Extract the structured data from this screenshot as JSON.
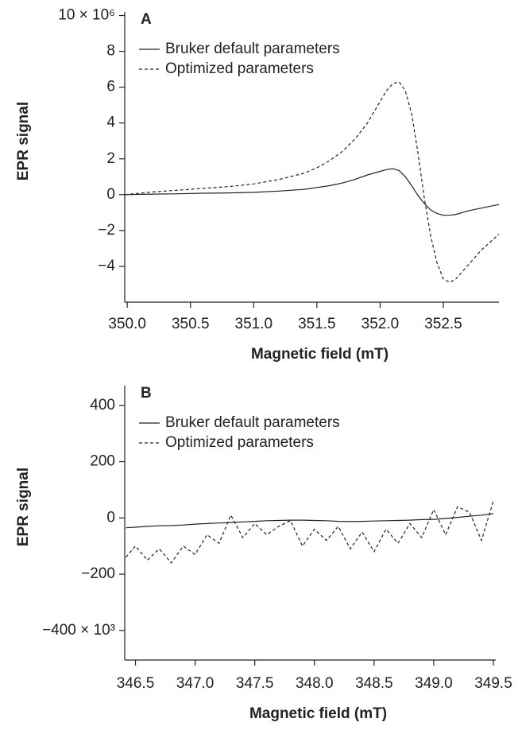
{
  "chart_data": [
    {
      "type": "line",
      "panel_label": "A",
      "xlabel": "Magnetic field (mT)",
      "ylabel": "EPR signal",
      "x": [
        349.98,
        350.2,
        350.4,
        350.6,
        350.8,
        351.0,
        351.2,
        351.4,
        351.5,
        351.6,
        351.7,
        351.8,
        351.9,
        352.0,
        352.05,
        352.1,
        352.15,
        352.2,
        352.25,
        352.3,
        352.35,
        352.4,
        352.45,
        352.5,
        352.55,
        352.6,
        352.7,
        352.8,
        352.94
      ],
      "series": [
        {
          "name": "Bruker default parameters",
          "color": "#222222",
          "linestyle": "solid",
          "values": [
            0,
            0.03,
            0.05,
            0.08,
            0.1,
            0.13,
            0.2,
            0.3,
            0.4,
            0.5,
            0.65,
            0.85,
            1.1,
            1.3,
            1.4,
            1.45,
            1.35,
            1.0,
            0.5,
            -0.05,
            -0.5,
            -0.85,
            -1.05,
            -1.15,
            -1.15,
            -1.1,
            -0.9,
            -0.75,
            -0.55
          ]
        },
        {
          "name": "Optimized parameters",
          "color": "#222222",
          "linestyle": "dashed",
          "values": [
            0,
            0.15,
            0.25,
            0.35,
            0.45,
            0.6,
            0.85,
            1.2,
            1.5,
            1.9,
            2.4,
            3.1,
            4.0,
            5.2,
            5.8,
            6.2,
            6.3,
            5.8,
            4.5,
            2.3,
            -0.2,
            -2.3,
            -3.8,
            -4.7,
            -4.9,
            -4.7,
            -3.9,
            -3.1,
            -2.2
          ]
        }
      ],
      "xlim": [
        349.98,
        352.94
      ],
      "xticks": [
        {
          "value": 350,
          "label": "350.0"
        },
        {
          "value": 350.5,
          "label": "350.5"
        },
        {
          "value": 351,
          "label": "351.0"
        },
        {
          "value": 351.5,
          "label": "351.5"
        },
        {
          "value": 352,
          "label": "352.0"
        },
        {
          "value": 352.5,
          "label": "352.5"
        }
      ],
      "ylim": [
        -6,
        10.2
      ],
      "yticks": [
        {
          "value": 10,
          "label": "10 × 10⁶"
        },
        8,
        6,
        4,
        2,
        0,
        {
          "value": -2,
          "label": "−2"
        },
        {
          "value": -4,
          "label": "−4"
        }
      ],
      "legend": "upper left"
    },
    {
      "type": "line",
      "panel_label": "B",
      "xlabel": "Magnetic field (mT)",
      "ylabel": "EPR signal",
      "x": [
        346.42,
        346.5,
        346.6,
        346.7,
        346.8,
        346.9,
        347.0,
        347.1,
        347.2,
        347.3,
        347.4,
        347.5,
        347.6,
        347.7,
        347.8,
        347.9,
        348.0,
        348.1,
        348.2,
        348.3,
        348.4,
        348.5,
        348.6,
        348.7,
        348.8,
        348.9,
        349.0,
        349.1,
        349.2,
        349.3,
        349.4,
        349.5
      ],
      "series": [
        {
          "name": "Bruker default parameters",
          "color": "#222222",
          "linestyle": "solid",
          "values": [
            -35,
            -33,
            -30,
            -28,
            -27,
            -25,
            -22,
            -20,
            -18,
            -16,
            -14,
            -12,
            -10,
            -9,
            -8,
            -8,
            -9,
            -10,
            -12,
            -13,
            -12,
            -11,
            -10,
            -9,
            -8,
            -6,
            -5,
            -2,
            2,
            6,
            10,
            15
          ]
        },
        {
          "name": "Optimized parameters",
          "color": "#222222",
          "linestyle": "dashed",
          "values": [
            -140,
            -100,
            -150,
            -110,
            -160,
            -100,
            -130,
            -60,
            -90,
            10,
            -70,
            -20,
            -60,
            -30,
            -10,
            -100,
            -40,
            -80,
            -30,
            -110,
            -50,
            -120,
            -40,
            -90,
            -20,
            -70,
            30,
            -60,
            40,
            20,
            -80,
            60
          ]
        }
      ],
      "xlim": [
        346.41,
        349.52
      ],
      "xticks": [
        346.5,
        {
          "value": 347,
          "label": "347.0"
        },
        347.5,
        {
          "value": 348,
          "label": "348.0"
        },
        348.5,
        {
          "value": 349,
          "label": "349.0"
        },
        349.5
      ],
      "ylim": [
        -505,
        470
      ],
      "yticks": [
        400,
        200,
        0,
        {
          "value": -200,
          "label": "−200"
        },
        {
          "value": -400,
          "label": "−400 × 10³"
        }
      ],
      "legend": "upper left"
    }
  ]
}
